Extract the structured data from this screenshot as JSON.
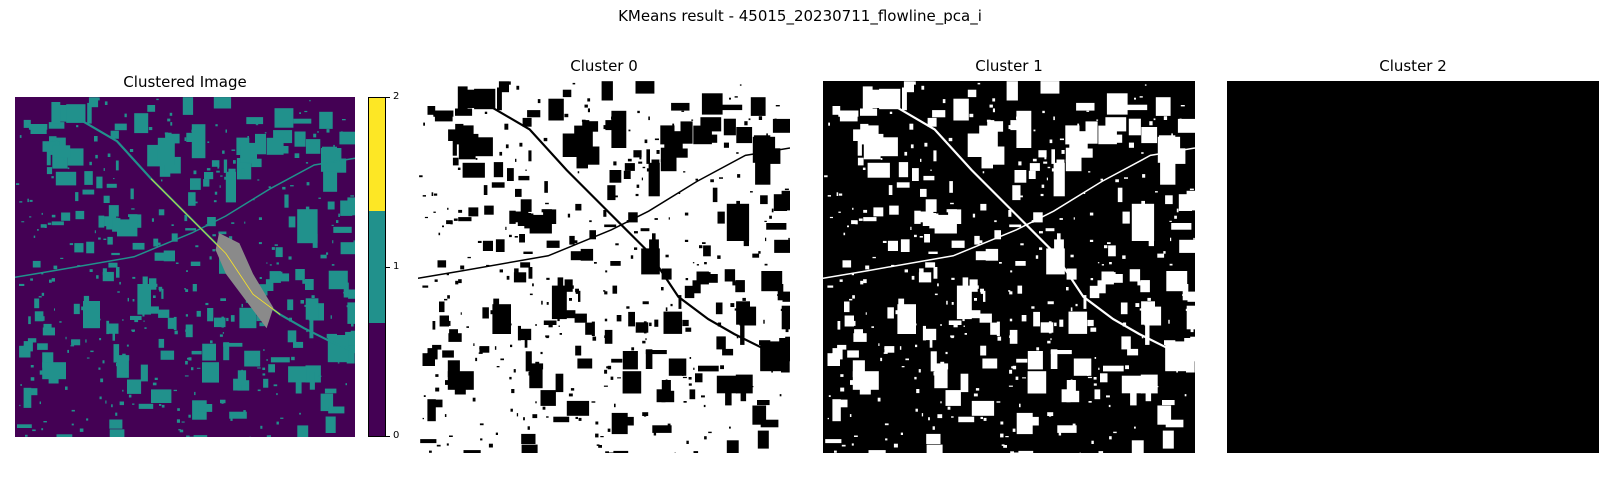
{
  "figure": {
    "suptitle": "KMeans result - 45015_20230711_flowline_pca_i"
  },
  "chart_data": [
    {
      "type": "heatmap",
      "title": "Clustered Image",
      "colormap": "viridis",
      "class_colors": [
        "#440154",
        "#21918c",
        "#fde725"
      ],
      "highlight_color": "#8a8a8a",
      "colorbar": {
        "range": [
          0,
          2
        ],
        "ticks": [
          "0",
          "1",
          "2"
        ]
      }
    },
    {
      "type": "heatmap",
      "title": "Cluster 0",
      "foreground": "#ffffff",
      "background": "#000000"
    },
    {
      "type": "heatmap",
      "title": "Cluster 1",
      "foreground": "#ffffff",
      "background": "#000000"
    },
    {
      "type": "heatmap",
      "title": "Cluster 2",
      "foreground": "#ffffff",
      "background": "#000000"
    }
  ]
}
